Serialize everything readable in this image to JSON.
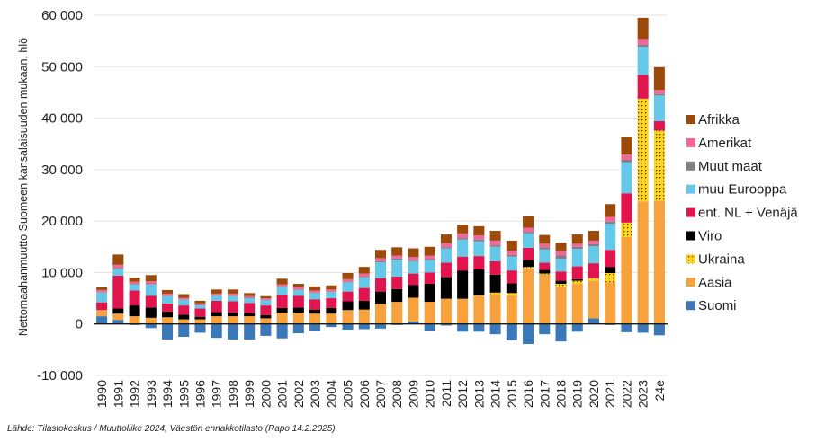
{
  "chart_data": {
    "type": "bar",
    "stacked": true,
    "ylabel": "Nettomaahanmuutto Suomeen kansalaisuuden mukaan, hlö",
    "ylim": [
      -10000,
      60000
    ],
    "yticks": [
      -10000,
      0,
      10000,
      20000,
      30000,
      40000,
      50000,
      60000
    ],
    "ytick_labels": [
      "-10 000",
      "0",
      "10 000",
      "20 000",
      "30 000",
      "40 000",
      "50 000",
      "60 000"
    ],
    "grid": true,
    "legend_position": "right",
    "categories": [
      "1990",
      "1991",
      "1992",
      "1993",
      "1994",
      "1995",
      "1996",
      "1997",
      "1998",
      "1999",
      "2000",
      "2001",
      "2002",
      "2003",
      "2004",
      "2005",
      "2006",
      "2007",
      "2008",
      "2009",
      "2010",
      "2011",
      "2012",
      "2013",
      "2014",
      "2015",
      "2016",
      "2017",
      "2018",
      "2019",
      "2020",
      "2021",
      "2022",
      "2023",
      "24e"
    ],
    "series": [
      {
        "name": "Suomi",
        "color": "#3a78b8",
        "values": [
          1500,
          800,
          -200,
          -800,
          -3000,
          -2500,
          -1700,
          -2700,
          -3000,
          -3000,
          -2300,
          -2800,
          -1800,
          -1300,
          -600,
          -1100,
          -1000,
          -900,
          -200,
          500,
          -1300,
          -300,
          -1500,
          -1500,
          -2000,
          -3200,
          -3900,
          -2000,
          -3400,
          -1500,
          1100,
          -200,
          -1600,
          -1700,
          -2200
        ]
      },
      {
        "name": "Aasia",
        "color": "#f7a23c",
        "values": [
          1200,
          1200,
          1500,
          1200,
          1300,
          900,
          900,
          1500,
          1500,
          1500,
          1100,
          2200,
          2200,
          2000,
          2000,
          2700,
          2800,
          3900,
          4300,
          4600,
          4300,
          4900,
          4900,
          5600,
          5800,
          5500,
          10800,
          9600,
          7200,
          7800,
          7300,
          8100,
          16900,
          23800,
          24000
        ]
      },
      {
        "name": "Ukraina",
        "color": "#ffd21f",
        "pattern": "dots",
        "values": [
          0,
          0,
          0,
          0,
          0,
          0,
          0,
          0,
          0,
          0,
          0,
          0,
          0,
          0,
          0,
          0,
          0,
          0,
          0,
          0,
          0,
          0,
          0,
          0,
          300,
          500,
          300,
          200,
          600,
          600,
          500,
          1800,
          2800,
          20000,
          13600
        ]
      },
      {
        "name": "Viro",
        "color": "#000000",
        "values": [
          0,
          1000,
          2100,
          2000,
          1100,
          900,
          500,
          800,
          700,
          600,
          600,
          900,
          1000,
          800,
          1100,
          1700,
          1700,
          2400,
          2500,
          2500,
          3500,
          4200,
          5500,
          5000,
          3500,
          1900,
          1300,
          700,
          600,
          300,
          0,
          1200,
          0,
          0,
          0
        ]
      },
      {
        "name": "ent. NL + Venäjä",
        "color": "#e1144e",
        "values": [
          1500,
          6400,
          2900,
          2300,
          1600,
          1800,
          1600,
          2200,
          2200,
          2000,
          1900,
          2600,
          2300,
          2000,
          1900,
          1900,
          2500,
          2600,
          2400,
          2200,
          2200,
          2800,
          2700,
          2600,
          2600,
          2500,
          2400,
          1400,
          1800,
          2500,
          2900,
          3300,
          5700,
          4600,
          1800
        ]
      },
      {
        "name": "muu Eurooppa",
        "color": "#66c8e8",
        "values": [
          1900,
          1300,
          1200,
          2200,
          1400,
          1100,
          600,
          1000,
          1000,
          900,
          1000,
          1500,
          1100,
          1200,
          1200,
          1800,
          2100,
          3100,
          3300,
          2400,
          2400,
          2800,
          3300,
          2900,
          2800,
          2700,
          2800,
          2600,
          2500,
          3400,
          3300,
          5100,
          6000,
          5500,
          5000
        ]
      },
      {
        "name": "Muut maat",
        "color": "#808080",
        "values": [
          100,
          200,
          100,
          100,
          100,
          100,
          100,
          100,
          100,
          100,
          100,
          100,
          100,
          100,
          100,
          100,
          100,
          200,
          200,
          200,
          200,
          200,
          300,
          300,
          300,
          300,
          300,
          400,
          600,
          400,
          400,
          400,
          500,
          400,
          300
        ]
      },
      {
        "name": "Amerikat",
        "color": "#f0679a",
        "values": [
          400,
          600,
          400,
          500,
          400,
          300,
          300,
          300,
          400,
          300,
          300,
          400,
          500,
          400,
          400,
          500,
          600,
          600,
          600,
          600,
          700,
          800,
          900,
          800,
          900,
          800,
          800,
          700,
          800,
          600,
          700,
          900,
          1000,
          1100,
          800
        ]
      },
      {
        "name": "Afrikka",
        "color": "#9c4a0a",
        "values": [
          500,
          2000,
          800,
          1200,
          700,
          700,
          500,
          800,
          800,
          600,
          400,
          1100,
          600,
          800,
          800,
          1200,
          1300,
          1600,
          1600,
          1700,
          1700,
          1700,
          1700,
          1800,
          1900,
          2000,
          2300,
          1700,
          1700,
          1800,
          1900,
          2500,
          3500,
          4100,
          4400
        ]
      }
    ]
  },
  "source_text": "Lähde: Tilastokeskus / Muuttoliike 2024, Väestön ennakkotilasto (Rapo 14.2.2025)"
}
